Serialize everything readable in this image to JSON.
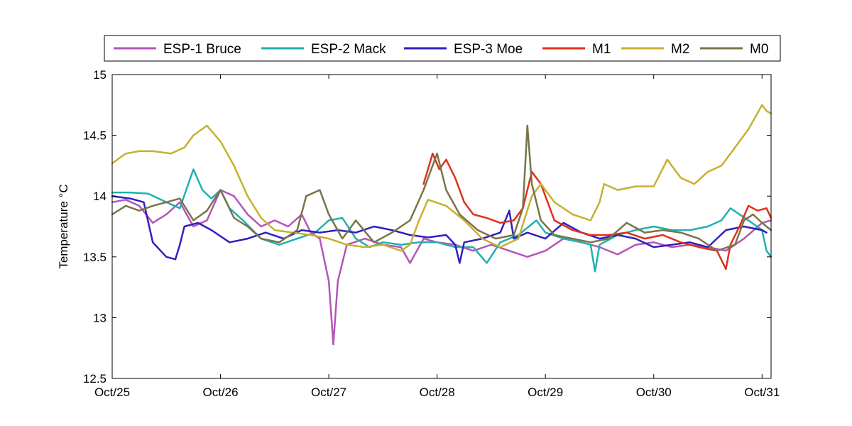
{
  "chart_data": {
    "type": "line",
    "title": "",
    "xlabel": "",
    "ylabel": "Temperature °C",
    "x_ticks": [
      "Oct/25",
      "Oct/26",
      "Oct/27",
      "Oct/28",
      "Oct/29",
      "Oct/30",
      "Oct/31"
    ],
    "xlim": [
      "Oct/25",
      "Oct/31 02:00"
    ],
    "ylim": [
      12.5,
      15
    ],
    "y_ticks": [
      12.5,
      13,
      13.5,
      14,
      14.5,
      15
    ],
    "y_tick_labels": [
      "12.5",
      "13",
      "13.5",
      "14",
      "14.5",
      "15"
    ],
    "grid": false,
    "legend_placement": "top, outside plot, single row",
    "series": [
      {
        "name": "ESP-1 Bruce",
        "color": "#b455b9",
        "points": [
          [
            "Oct/25 00:00",
            13.95
          ],
          [
            "Oct/25 03:00",
            13.97
          ],
          [
            "Oct/25 06:00",
            13.92
          ],
          [
            "Oct/25 09:00",
            13.78
          ],
          [
            "Oct/25 12:00",
            13.85
          ],
          [
            "Oct/25 15:00",
            13.95
          ],
          [
            "Oct/25 18:00",
            13.75
          ],
          [
            "Oct/25 21:00",
            13.8
          ],
          [
            "Oct/26 00:00",
            14.05
          ],
          [
            "Oct/26 03:00",
            14.0
          ],
          [
            "Oct/26 06:00",
            13.85
          ],
          [
            "Oct/26 09:00",
            13.75
          ],
          [
            "Oct/26 12:00",
            13.8
          ],
          [
            "Oct/26 15:00",
            13.75
          ],
          [
            "Oct/26 18:00",
            13.85
          ],
          [
            "Oct/26 20:00",
            13.7
          ],
          [
            "Oct/26 22:00",
            13.65
          ],
          [
            "Oct/27 00:00",
            13.3
          ],
          [
            "Oct/27 01:00",
            12.78
          ],
          [
            "Oct/27 02:00",
            13.3
          ],
          [
            "Oct/27 04:00",
            13.6
          ],
          [
            "Oct/27 08:00",
            13.65
          ],
          [
            "Oct/27 12:00",
            13.6
          ],
          [
            "Oct/27 16:00",
            13.58
          ],
          [
            "Oct/27 18:00",
            13.45
          ],
          [
            "Oct/27 21:00",
            13.65
          ],
          [
            "Oct/28 00:00",
            13.62
          ],
          [
            "Oct/28 04:00",
            13.6
          ],
          [
            "Oct/28 08:00",
            13.55
          ],
          [
            "Oct/28 12:00",
            13.6
          ],
          [
            "Oct/28 16:00",
            13.55
          ],
          [
            "Oct/28 20:00",
            13.5
          ],
          [
            "Oct/29 00:00",
            13.55
          ],
          [
            "Oct/29 04:00",
            13.65
          ],
          [
            "Oct/29 08:00",
            13.62
          ],
          [
            "Oct/29 12:00",
            13.58
          ],
          [
            "Oct/29 16:00",
            13.52
          ],
          [
            "Oct/29 20:00",
            13.6
          ],
          [
            "Oct/30 00:00",
            13.62
          ],
          [
            "Oct/30 04:00",
            13.58
          ],
          [
            "Oct/30 08:00",
            13.6
          ],
          [
            "Oct/30 12:00",
            13.58
          ],
          [
            "Oct/30 16:00",
            13.55
          ],
          [
            "Oct/30 20:00",
            13.65
          ],
          [
            "Oct/31 00:00",
            13.78
          ],
          [
            "Oct/31 02:00",
            13.8
          ]
        ]
      },
      {
        "name": "ESP-2 Mack",
        "color": "#20b0b0",
        "points": [
          [
            "Oct/25 00:00",
            14.03
          ],
          [
            "Oct/25 04:00",
            14.03
          ],
          [
            "Oct/25 08:00",
            14.02
          ],
          [
            "Oct/25 12:00",
            13.95
          ],
          [
            "Oct/25 15:00",
            13.9
          ],
          [
            "Oct/25 18:00",
            14.22
          ],
          [
            "Oct/25 20:00",
            14.05
          ],
          [
            "Oct/25 22:00",
            13.98
          ],
          [
            "Oct/26 00:00",
            14.05
          ],
          [
            "Oct/26 02:00",
            13.9
          ],
          [
            "Oct/26 05:00",
            13.8
          ],
          [
            "Oct/26 09:00",
            13.65
          ],
          [
            "Oct/26 13:00",
            13.6
          ],
          [
            "Oct/26 17:00",
            13.65
          ],
          [
            "Oct/26 21:00",
            13.7
          ],
          [
            "Oct/27 00:00",
            13.8
          ],
          [
            "Oct/27 03:00",
            13.82
          ],
          [
            "Oct/27 06:00",
            13.65
          ],
          [
            "Oct/27 09:00",
            13.58
          ],
          [
            "Oct/27 12:00",
            13.62
          ],
          [
            "Oct/27 16:00",
            13.6
          ],
          [
            "Oct/27 20:00",
            13.62
          ],
          [
            "Oct/28 00:00",
            13.62
          ],
          [
            "Oct/28 04:00",
            13.58
          ],
          [
            "Oct/28 08:00",
            13.58
          ],
          [
            "Oct/28 11:00",
            13.45
          ],
          [
            "Oct/28 14:00",
            13.62
          ],
          [
            "Oct/28 18:00",
            13.68
          ],
          [
            "Oct/28 22:00",
            13.8
          ],
          [
            "Oct/29 00:00",
            13.7
          ],
          [
            "Oct/29 04:00",
            13.65
          ],
          [
            "Oct/29 08:00",
            13.62
          ],
          [
            "Oct/29 10:00",
            13.6
          ],
          [
            "Oct/29 11:00",
            13.38
          ],
          [
            "Oct/29 12:00",
            13.6
          ],
          [
            "Oct/29 16:00",
            13.68
          ],
          [
            "Oct/29 20:00",
            13.72
          ],
          [
            "Oct/30 00:00",
            13.75
          ],
          [
            "Oct/30 04:00",
            13.72
          ],
          [
            "Oct/30 08:00",
            13.72
          ],
          [
            "Oct/30 12:00",
            13.75
          ],
          [
            "Oct/30 15:00",
            13.8
          ],
          [
            "Oct/30 17:00",
            13.9
          ],
          [
            "Oct/30 19:00",
            13.85
          ],
          [
            "Oct/30 21:00",
            13.8
          ],
          [
            "Oct/31 00:00",
            13.72
          ],
          [
            "Oct/31 01:00",
            13.55
          ],
          [
            "Oct/31 02:00",
            13.5
          ]
        ]
      },
      {
        "name": "ESP-3 Moe",
        "color": "#2e20c0",
        "points": [
          [
            "Oct/25 00:00",
            14.0
          ],
          [
            "Oct/25 04:00",
            13.98
          ],
          [
            "Oct/25 07:00",
            13.95
          ],
          [
            "Oct/25 09:00",
            13.62
          ],
          [
            "Oct/25 12:00",
            13.5
          ],
          [
            "Oct/25 14:00",
            13.48
          ],
          [
            "Oct/25 15:00",
            13.6
          ],
          [
            "Oct/25 16:00",
            13.75
          ],
          [
            "Oct/25 19:00",
            13.78
          ],
          [
            "Oct/25 22:00",
            13.72
          ],
          [
            "Oct/26 02:00",
            13.62
          ],
          [
            "Oct/26 06:00",
            13.65
          ],
          [
            "Oct/26 10:00",
            13.7
          ],
          [
            "Oct/26 14:00",
            13.65
          ],
          [
            "Oct/26 18:00",
            13.72
          ],
          [
            "Oct/26 22:00",
            13.7
          ],
          [
            "Oct/27 02:00",
            13.72
          ],
          [
            "Oct/27 06:00",
            13.7
          ],
          [
            "Oct/27 10:00",
            13.75
          ],
          [
            "Oct/27 14:00",
            13.72
          ],
          [
            "Oct/27 18:00",
            13.68
          ],
          [
            "Oct/27 22:00",
            13.66
          ],
          [
            "Oct/28 02:00",
            13.68
          ],
          [
            "Oct/28 04:00",
            13.6
          ],
          [
            "Oct/28 05:00",
            13.45
          ],
          [
            "Oct/28 06:00",
            13.62
          ],
          [
            "Oct/28 10:00",
            13.65
          ],
          [
            "Oct/28 14:00",
            13.7
          ],
          [
            "Oct/28 16:00",
            13.88
          ],
          [
            "Oct/28 17:00",
            13.65
          ],
          [
            "Oct/28 20:00",
            13.7
          ],
          [
            "Oct/29 00:00",
            13.65
          ],
          [
            "Oct/29 04:00",
            13.78
          ],
          [
            "Oct/29 08:00",
            13.7
          ],
          [
            "Oct/29 12:00",
            13.65
          ],
          [
            "Oct/29 16:00",
            13.68
          ],
          [
            "Oct/29 20:00",
            13.65
          ],
          [
            "Oct/30 00:00",
            13.58
          ],
          [
            "Oct/30 04:00",
            13.6
          ],
          [
            "Oct/30 08:00",
            13.62
          ],
          [
            "Oct/30 12:00",
            13.58
          ],
          [
            "Oct/30 16:00",
            13.72
          ],
          [
            "Oct/30 20:00",
            13.75
          ],
          [
            "Oct/31 00:00",
            13.72
          ],
          [
            "Oct/31 01:00",
            13.7
          ]
        ]
      },
      {
        "name": "M1",
        "color": "#e03018",
        "points": [
          [
            "Oct/27 21:00",
            14.1
          ],
          [
            "Oct/27 23:00",
            14.35
          ],
          [
            "Oct/28 00:30",
            14.22
          ],
          [
            "Oct/28 02:00",
            14.3
          ],
          [
            "Oct/28 04:00",
            14.15
          ],
          [
            "Oct/28 06:00",
            13.95
          ],
          [
            "Oct/28 08:00",
            13.85
          ],
          [
            "Oct/28 11:00",
            13.82
          ],
          [
            "Oct/28 14:00",
            13.78
          ],
          [
            "Oct/28 17:00",
            13.8
          ],
          [
            "Oct/28 19:00",
            13.9
          ],
          [
            "Oct/28 21:00",
            14.2
          ],
          [
            "Oct/28 23:00",
            14.1
          ],
          [
            "Oct/29 02:00",
            13.8
          ],
          [
            "Oct/29 06:00",
            13.72
          ],
          [
            "Oct/29 10:00",
            13.68
          ],
          [
            "Oct/29 14:00",
            13.68
          ],
          [
            "Oct/29 18:00",
            13.7
          ],
          [
            "Oct/29 22:00",
            13.65
          ],
          [
            "Oct/30 02:00",
            13.68
          ],
          [
            "Oct/30 06:00",
            13.62
          ],
          [
            "Oct/30 10:00",
            13.58
          ],
          [
            "Oct/30 14:00",
            13.55
          ],
          [
            "Oct/30 16:00",
            13.4
          ],
          [
            "Oct/30 17:00",
            13.6
          ],
          [
            "Oct/30 19:00",
            13.75
          ],
          [
            "Oct/30 21:00",
            13.92
          ],
          [
            "Oct/30 23:00",
            13.88
          ],
          [
            "Oct/31 01:00",
            13.9
          ],
          [
            "Oct/31 02:00",
            13.82
          ]
        ]
      },
      {
        "name": "M2",
        "color": "#c8b02e",
        "points": [
          [
            "Oct/25 00:00",
            14.27
          ],
          [
            "Oct/25 03:00",
            14.35
          ],
          [
            "Oct/25 06:00",
            14.37
          ],
          [
            "Oct/25 09:00",
            14.37
          ],
          [
            "Oct/25 13:00",
            14.35
          ],
          [
            "Oct/25 16:00",
            14.4
          ],
          [
            "Oct/25 18:00",
            14.5
          ],
          [
            "Oct/25 21:00",
            14.58
          ],
          [
            "Oct/26 00:00",
            14.45
          ],
          [
            "Oct/26 03:00",
            14.25
          ],
          [
            "Oct/26 06:00",
            14.0
          ],
          [
            "Oct/26 09:00",
            13.82
          ],
          [
            "Oct/26 12:00",
            13.72
          ],
          [
            "Oct/26 16:00",
            13.7
          ],
          [
            "Oct/26 20:00",
            13.68
          ],
          [
            "Oct/27 00:00",
            13.65
          ],
          [
            "Oct/27 04:00",
            13.6
          ],
          [
            "Oct/27 08:00",
            13.58
          ],
          [
            "Oct/27 12:00",
            13.6
          ],
          [
            "Oct/27 16:00",
            13.55
          ],
          [
            "Oct/27 18:00",
            13.6
          ],
          [
            "Oct/27 20:00",
            13.8
          ],
          [
            "Oct/27 22:00",
            13.97
          ],
          [
            "Oct/28 02:00",
            13.92
          ],
          [
            "Oct/28 06:00",
            13.8
          ],
          [
            "Oct/28 10:00",
            13.65
          ],
          [
            "Oct/28 14:00",
            13.58
          ],
          [
            "Oct/28 18:00",
            13.65
          ],
          [
            "Oct/28 21:00",
            14.0
          ],
          [
            "Oct/28 23:00",
            14.1
          ],
          [
            "Oct/29 02:00",
            13.95
          ],
          [
            "Oct/29 06:00",
            13.85
          ],
          [
            "Oct/29 10:00",
            13.8
          ],
          [
            "Oct/29 12:00",
            13.95
          ],
          [
            "Oct/29 13:00",
            14.1
          ],
          [
            "Oct/29 16:00",
            14.05
          ],
          [
            "Oct/29 20:00",
            14.08
          ],
          [
            "Oct/30 00:00",
            14.08
          ],
          [
            "Oct/30 03:00",
            14.3
          ],
          [
            "Oct/30 06:00",
            14.15
          ],
          [
            "Oct/30 09:00",
            14.1
          ],
          [
            "Oct/30 12:00",
            14.2
          ],
          [
            "Oct/30 15:00",
            14.25
          ],
          [
            "Oct/30 18:00",
            14.4
          ],
          [
            "Oct/30 21:00",
            14.55
          ],
          [
            "Oct/31 00:00",
            14.75
          ],
          [
            "Oct/31 01:00",
            14.7
          ],
          [
            "Oct/31 02:00",
            14.68
          ]
        ]
      },
      {
        "name": "M0",
        "color": "#7a7448",
        "points": [
          [
            "Oct/25 00:00",
            13.85
          ],
          [
            "Oct/25 03:00",
            13.92
          ],
          [
            "Oct/25 06:00",
            13.88
          ],
          [
            "Oct/25 09:00",
            13.92
          ],
          [
            "Oct/25 12:00",
            13.95
          ],
          [
            "Oct/25 15:00",
            13.98
          ],
          [
            "Oct/25 18:00",
            13.8
          ],
          [
            "Oct/25 21:00",
            13.88
          ],
          [
            "Oct/26 00:00",
            14.05
          ],
          [
            "Oct/26 03:00",
            13.82
          ],
          [
            "Oct/26 06:00",
            13.75
          ],
          [
            "Oct/26 09:00",
            13.65
          ],
          [
            "Oct/26 13:00",
            13.62
          ],
          [
            "Oct/26 17:00",
            13.72
          ],
          [
            "Oct/26 19:00",
            14.0
          ],
          [
            "Oct/26 22:00",
            14.05
          ],
          [
            "Oct/27 00:00",
            13.85
          ],
          [
            "Oct/27 03:00",
            13.65
          ],
          [
            "Oct/27 06:00",
            13.8
          ],
          [
            "Oct/27 10:00",
            13.62
          ],
          [
            "Oct/27 14:00",
            13.7
          ],
          [
            "Oct/27 18:00",
            13.8
          ],
          [
            "Oct/27 21:00",
            14.05
          ],
          [
            "Oct/28 00:00",
            14.35
          ],
          [
            "Oct/28 02:00",
            14.05
          ],
          [
            "Oct/28 05:00",
            13.85
          ],
          [
            "Oct/28 09:00",
            13.72
          ],
          [
            "Oct/28 13:00",
            13.65
          ],
          [
            "Oct/28 17:00",
            13.68
          ],
          [
            "Oct/28 19:00",
            13.9
          ],
          [
            "Oct/28 20:00",
            14.58
          ],
          [
            "Oct/28 21:00",
            14.1
          ],
          [
            "Oct/28 23:00",
            13.8
          ],
          [
            "Oct/29 02:00",
            13.68
          ],
          [
            "Oct/29 06:00",
            13.65
          ],
          [
            "Oct/29 10:00",
            13.62
          ],
          [
            "Oct/29 14:00",
            13.65
          ],
          [
            "Oct/29 18:00",
            13.78
          ],
          [
            "Oct/29 22:00",
            13.7
          ],
          [
            "Oct/30 02:00",
            13.72
          ],
          [
            "Oct/30 06:00",
            13.7
          ],
          [
            "Oct/30 10:00",
            13.65
          ],
          [
            "Oct/30 14:00",
            13.55
          ],
          [
            "Oct/30 18:00",
            13.6
          ],
          [
            "Oct/30 20:00",
            13.8
          ],
          [
            "Oct/30 22:00",
            13.85
          ],
          [
            "Oct/31 00:00",
            13.78
          ],
          [
            "Oct/31 02:00",
            13.72
          ]
        ]
      }
    ]
  }
}
